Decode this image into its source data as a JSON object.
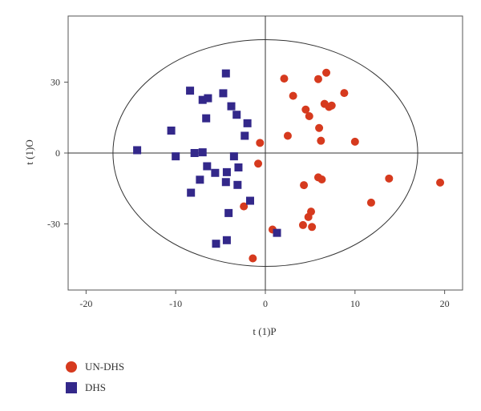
{
  "chart_data": {
    "type": "scatter",
    "xlabel": "t (1)P",
    "ylabel": "t (1)O",
    "xlim": [
      -22,
      22
    ],
    "ylim": [
      -58,
      58
    ],
    "xticks": [
      -20,
      -10,
      0,
      10,
      20
    ],
    "yticks": [
      -30,
      0,
      30
    ],
    "xtick_labels": [
      "-20",
      "-10",
      "0",
      "10",
      "20"
    ],
    "ytick_labels": [
      "-30",
      "0",
      "30"
    ],
    "ellipse": {
      "cx": 0,
      "cy": 0,
      "rx": 17,
      "ry": 48
    },
    "grid": false,
    "legend_position": "bottom-left",
    "series": [
      {
        "name": "UN-DHS",
        "marker": "circle",
        "color": "#d63a1e",
        "points": [
          [
            2.1,
            31.5
          ],
          [
            5.9,
            31.3
          ],
          [
            6.8,
            34.0
          ],
          [
            3.1,
            24.2
          ],
          [
            8.8,
            25.4
          ],
          [
            4.5,
            18.4
          ],
          [
            6.6,
            20.8
          ],
          [
            7.1,
            19.5
          ],
          [
            7.4,
            20.1
          ],
          [
            4.9,
            15.6
          ],
          [
            6.0,
            10.6
          ],
          [
            2.5,
            7.3
          ],
          [
            6.2,
            5.2
          ],
          [
            10.0,
            4.8
          ],
          [
            -0.6,
            4.3
          ],
          [
            -0.8,
            -4.5
          ],
          [
            5.9,
            -10.3
          ],
          [
            6.3,
            -11.2
          ],
          [
            13.8,
            -10.8
          ],
          [
            19.5,
            -12.5
          ],
          [
            4.3,
            -13.6
          ],
          [
            -2.4,
            -22.6
          ],
          [
            11.8,
            -21.0
          ],
          [
            5.1,
            -24.8
          ],
          [
            4.8,
            -27.1
          ],
          [
            4.2,
            -30.5
          ],
          [
            5.2,
            -31.3
          ],
          [
            0.8,
            -32.4
          ],
          [
            -1.4,
            -44.6
          ]
        ]
      },
      {
        "name": "DHS",
        "marker": "square",
        "color": "#33288a",
        "points": [
          [
            -4.4,
            33.7
          ],
          [
            -8.4,
            26.4
          ],
          [
            -4.7,
            25.3
          ],
          [
            -7.0,
            22.5
          ],
          [
            -6.4,
            23.2
          ],
          [
            -3.8,
            19.8
          ],
          [
            -3.2,
            16.2
          ],
          [
            -6.6,
            14.7
          ],
          [
            -2.0,
            12.6
          ],
          [
            -10.5,
            9.5
          ],
          [
            -2.3,
            7.3
          ],
          [
            -14.3,
            1.2
          ],
          [
            -7.9,
            0.0
          ],
          [
            -7.0,
            0.3
          ],
          [
            -10.0,
            -1.4
          ],
          [
            -3.5,
            -1.4
          ],
          [
            -6.5,
            -5.6
          ],
          [
            -3.0,
            -6.1
          ],
          [
            -5.6,
            -8.4
          ],
          [
            -4.3,
            -8.1
          ],
          [
            -7.3,
            -11.3
          ],
          [
            -4.4,
            -12.3
          ],
          [
            -3.1,
            -13.5
          ],
          [
            -8.3,
            -16.8
          ],
          [
            -1.7,
            -20.2
          ],
          [
            -4.1,
            -25.4
          ],
          [
            1.3,
            -33.8
          ],
          [
            -4.3,
            -36.9
          ],
          [
            -5.5,
            -38.4
          ]
        ]
      }
    ]
  }
}
